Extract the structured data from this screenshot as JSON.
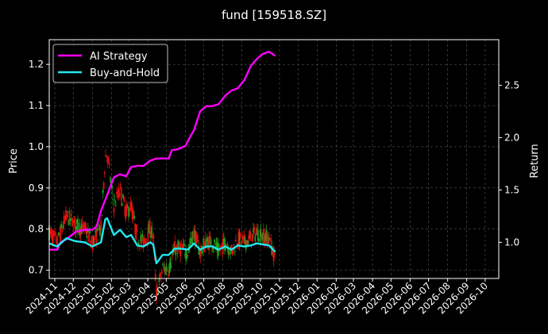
{
  "chart_data": {
    "type": "line",
    "title": "fund [159518.SZ]",
    "ylabel_left": "Price",
    "ylabel_right": "Return",
    "x_range": [
      "2024-10-23",
      "2026-10-23"
    ],
    "ylim_left": [
      0.68,
      1.26
    ],
    "ylim_right": [
      0.655,
      2.935
    ],
    "left_ticks": [
      "0.7",
      "0.8",
      "0.9",
      "1.0",
      "1.1",
      "1.2"
    ],
    "right_ticks": [
      "1.0",
      "1.5",
      "2.0",
      "2.5"
    ],
    "x_ticks": [
      "2024-11",
      "2024-12",
      "2025-01",
      "2025-02",
      "2025-03",
      "2025-04",
      "2025-05",
      "2025-06",
      "2025-07",
      "2025-08",
      "2025-09",
      "2025-10",
      "2025-11",
      "2025-12",
      "2026-01",
      "2026-02",
      "2026-03",
      "2026-04",
      "2026-05",
      "2026-06",
      "2026-07",
      "2026-08",
      "2026-09",
      "2026-10"
    ],
    "grid": true,
    "legend_position": "top-left",
    "colors": {
      "ai": "#ff00ff",
      "bh": "#22e8f0",
      "up": "#1e9e1e",
      "down": "#e01010",
      "grid": "#555555",
      "axis": "#ffffff"
    },
    "series": [
      {
        "name": "AI Strategy",
        "axis": "right",
        "points": [
          [
            "2024-10-23",
            0.93
          ],
          [
            "2024-11-05",
            0.93
          ],
          [
            "2024-11-10",
            1.0
          ],
          [
            "2024-11-20",
            1.03
          ],
          [
            "2024-12-05",
            1.1
          ],
          [
            "2024-12-20",
            1.12
          ],
          [
            "2025-01-01",
            1.12
          ],
          [
            "2025-01-08",
            1.15
          ],
          [
            "2025-01-15",
            1.3
          ],
          [
            "2025-01-25",
            1.45
          ],
          [
            "2025-02-05",
            1.62
          ],
          [
            "2025-02-15",
            1.65
          ],
          [
            "2025-02-25",
            1.63
          ],
          [
            "2025-03-05",
            1.72
          ],
          [
            "2025-03-15",
            1.73
          ],
          [
            "2025-03-25",
            1.73
          ],
          [
            "2025-04-05",
            1.78
          ],
          [
            "2025-04-15",
            1.8
          ],
          [
            "2025-04-25",
            1.8
          ],
          [
            "2025-05-05",
            1.8
          ],
          [
            "2025-05-10",
            1.88
          ],
          [
            "2025-05-20",
            1.89
          ],
          [
            "2025-06-01",
            1.92
          ],
          [
            "2025-06-10",
            2.02
          ],
          [
            "2025-06-15",
            2.07
          ],
          [
            "2025-06-25",
            2.25
          ],
          [
            "2025-07-05",
            2.3
          ],
          [
            "2025-07-15",
            2.3
          ],
          [
            "2025-07-25",
            2.32
          ],
          [
            "2025-08-05",
            2.4
          ],
          [
            "2025-08-15",
            2.45
          ],
          [
            "2025-08-25",
            2.47
          ],
          [
            "2025-09-05",
            2.55
          ],
          [
            "2025-09-15",
            2.68
          ],
          [
            "2025-09-25",
            2.75
          ],
          [
            "2025-10-05",
            2.8
          ],
          [
            "2025-10-15",
            2.82
          ],
          [
            "2025-10-20",
            2.8
          ],
          [
            "2025-10-25",
            2.78
          ]
        ]
      },
      {
        "name": "Buy-and-Hold",
        "axis": "right",
        "points": [
          [
            "2024-10-23",
            0.99
          ],
          [
            "2024-11-05",
            0.96
          ],
          [
            "2024-11-20",
            1.04
          ],
          [
            "2024-12-05",
            1.01
          ],
          [
            "2024-12-20",
            1.0
          ],
          [
            "2025-01-01",
            0.96
          ],
          [
            "2025-01-15",
            1.0
          ],
          [
            "2025-01-22",
            1.22
          ],
          [
            "2025-01-25",
            1.23
          ],
          [
            "2025-02-05",
            1.07
          ],
          [
            "2025-02-15",
            1.12
          ],
          [
            "2025-02-25",
            1.05
          ],
          [
            "2025-03-05",
            1.07
          ],
          [
            "2025-03-15",
            0.97
          ],
          [
            "2025-03-25",
            0.96
          ],
          [
            "2025-04-05",
            1.0
          ],
          [
            "2025-04-10",
            0.98
          ],
          [
            "2025-04-15",
            0.8
          ],
          [
            "2025-04-25",
            0.88
          ],
          [
            "2025-05-05",
            0.88
          ],
          [
            "2025-05-15",
            0.94
          ],
          [
            "2025-05-25",
            0.94
          ],
          [
            "2025-06-05",
            0.93
          ],
          [
            "2025-06-15",
            0.99
          ],
          [
            "2025-06-25",
            0.93
          ],
          [
            "2025-07-05",
            0.96
          ],
          [
            "2025-07-15",
            0.96
          ],
          [
            "2025-07-25",
            0.93
          ],
          [
            "2025-08-05",
            0.96
          ],
          [
            "2025-08-15",
            0.93
          ],
          [
            "2025-08-25",
            0.97
          ],
          [
            "2025-09-05",
            0.96
          ],
          [
            "2025-09-15",
            0.97
          ],
          [
            "2025-09-25",
            0.99
          ],
          [
            "2025-10-05",
            0.98
          ],
          [
            "2025-10-15",
            0.97
          ],
          [
            "2025-10-25",
            0.91
          ]
        ]
      }
    ]
  }
}
